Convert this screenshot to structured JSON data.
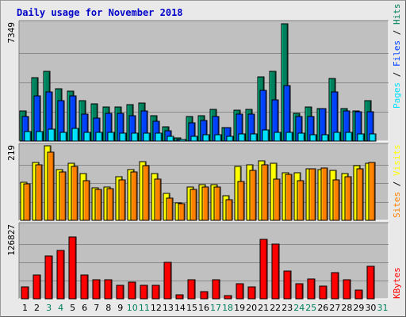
{
  "title": "Daily usage for November 2018",
  "colors": {
    "panel_bg": "#c0c0c0",
    "pages": "#00e0ff",
    "files": "#0040ff",
    "hits": "#00805c",
    "visits": "#ffff00",
    "sites": "#ff8000",
    "kbytes": "#ff0000",
    "weekend_label": "#00805c",
    "weekday_label": "#000000"
  },
  "legend": {
    "top": {
      "pages": "Pages",
      "files": "Files",
      "hits": "Hits",
      "sep": " / "
    },
    "middle": {
      "sites": "Sites",
      "visits": "Visits",
      "sep": " / "
    },
    "bottom": {
      "kbytes": "KBytes"
    }
  },
  "chart_data": {
    "type": "bar",
    "title": "Daily usage for November 2018",
    "categories": [
      "1",
      "2",
      "3",
      "4",
      "5",
      "6",
      "7",
      "8",
      "9",
      "10",
      "11",
      "12",
      "13",
      "14",
      "15",
      "16",
      "17",
      "18",
      "19",
      "20",
      "21",
      "22",
      "23",
      "24",
      "25",
      "26",
      "27",
      "28",
      "29",
      "30",
      "31"
    ],
    "weekend_days": [
      "3",
      "4",
      "10",
      "11",
      "17",
      "18",
      "24",
      "25",
      "31"
    ],
    "panels": [
      {
        "name": "usage",
        "ymax_label": "7349",
        "ylim": [
          0,
          7349
        ],
        "series": [
          {
            "name": "Hits",
            "values": [
              1900,
              3950,
              4350,
              3300,
              3150,
              2550,
              2350,
              2150,
              2150,
              2300,
              2400,
              1600,
              900,
              200,
              1550,
              1600,
              2000,
              850,
              1950,
              2000,
              4000,
              4350,
              7349,
              1750,
              2150,
              2050,
              3900,
              2050,
              1900,
              2550,
              0
            ]
          },
          {
            "name": "Files",
            "values": [
              1550,
              2850,
              3100,
              2550,
              2850,
              1700,
              1450,
              1750,
              1750,
              1600,
              1900,
              1250,
              650,
              100,
              1150,
              1300,
              1550,
              850,
              1700,
              1700,
              3200,
              2600,
              3500,
              1550,
              1550,
              2050,
              3100,
              1900,
              1850,
              1850,
              0
            ]
          },
          {
            "name": "Pages",
            "values": [
              600,
              600,
              750,
              550,
              800,
              550,
              550,
              550,
              500,
              500,
              500,
              500,
              300,
              100,
              300,
              400,
              400,
              300,
              450,
              450,
              700,
              550,
              550,
              500,
              400,
              400,
              550,
              550,
              450,
              450,
              0
            ]
          }
        ]
      },
      {
        "name": "visitors",
        "ymax_label": "219",
        "ylim": [
          0,
          219
        ],
        "series": [
          {
            "name": "Visits",
            "values": [
              112,
              170,
              219,
              150,
              168,
              138,
              95,
              98,
              128,
              150,
              172,
              138,
              80,
              52,
              98,
              106,
              106,
              72,
              158,
              162,
              175,
              168,
              140,
              139,
              152,
              148,
              146,
              138,
              160,
              168,
              0
            ]
          },
          {
            "name": "Sites",
            "values": [
              108,
              164,
              200,
              142,
              158,
              116,
              90,
              94,
              118,
              141,
              161,
              122,
              66,
              48,
              90,
              98,
              97,
              60,
              115,
              146,
              162,
              121,
              135,
              116,
              152,
              154,
              119,
              128,
              151,
              171,
              0
            ]
          }
        ]
      },
      {
        "name": "kbytes",
        "ymax_label": "126827",
        "ylim": [
          0,
          126827
        ],
        "series": [
          {
            "name": "KBytes",
            "values": [
              21000,
              42000,
              74000,
              84000,
              108000,
              42000,
              33000,
              33000,
              24000,
              29000,
              24000,
              24000,
              64000,
              7000,
              33000,
              12000,
              33000,
              6000,
              26000,
              21000,
              103000,
              95000,
              48000,
              26000,
              35000,
              22000,
              46000,
              33000,
              15000,
              57000,
              0
            ]
          }
        ]
      }
    ]
  }
}
